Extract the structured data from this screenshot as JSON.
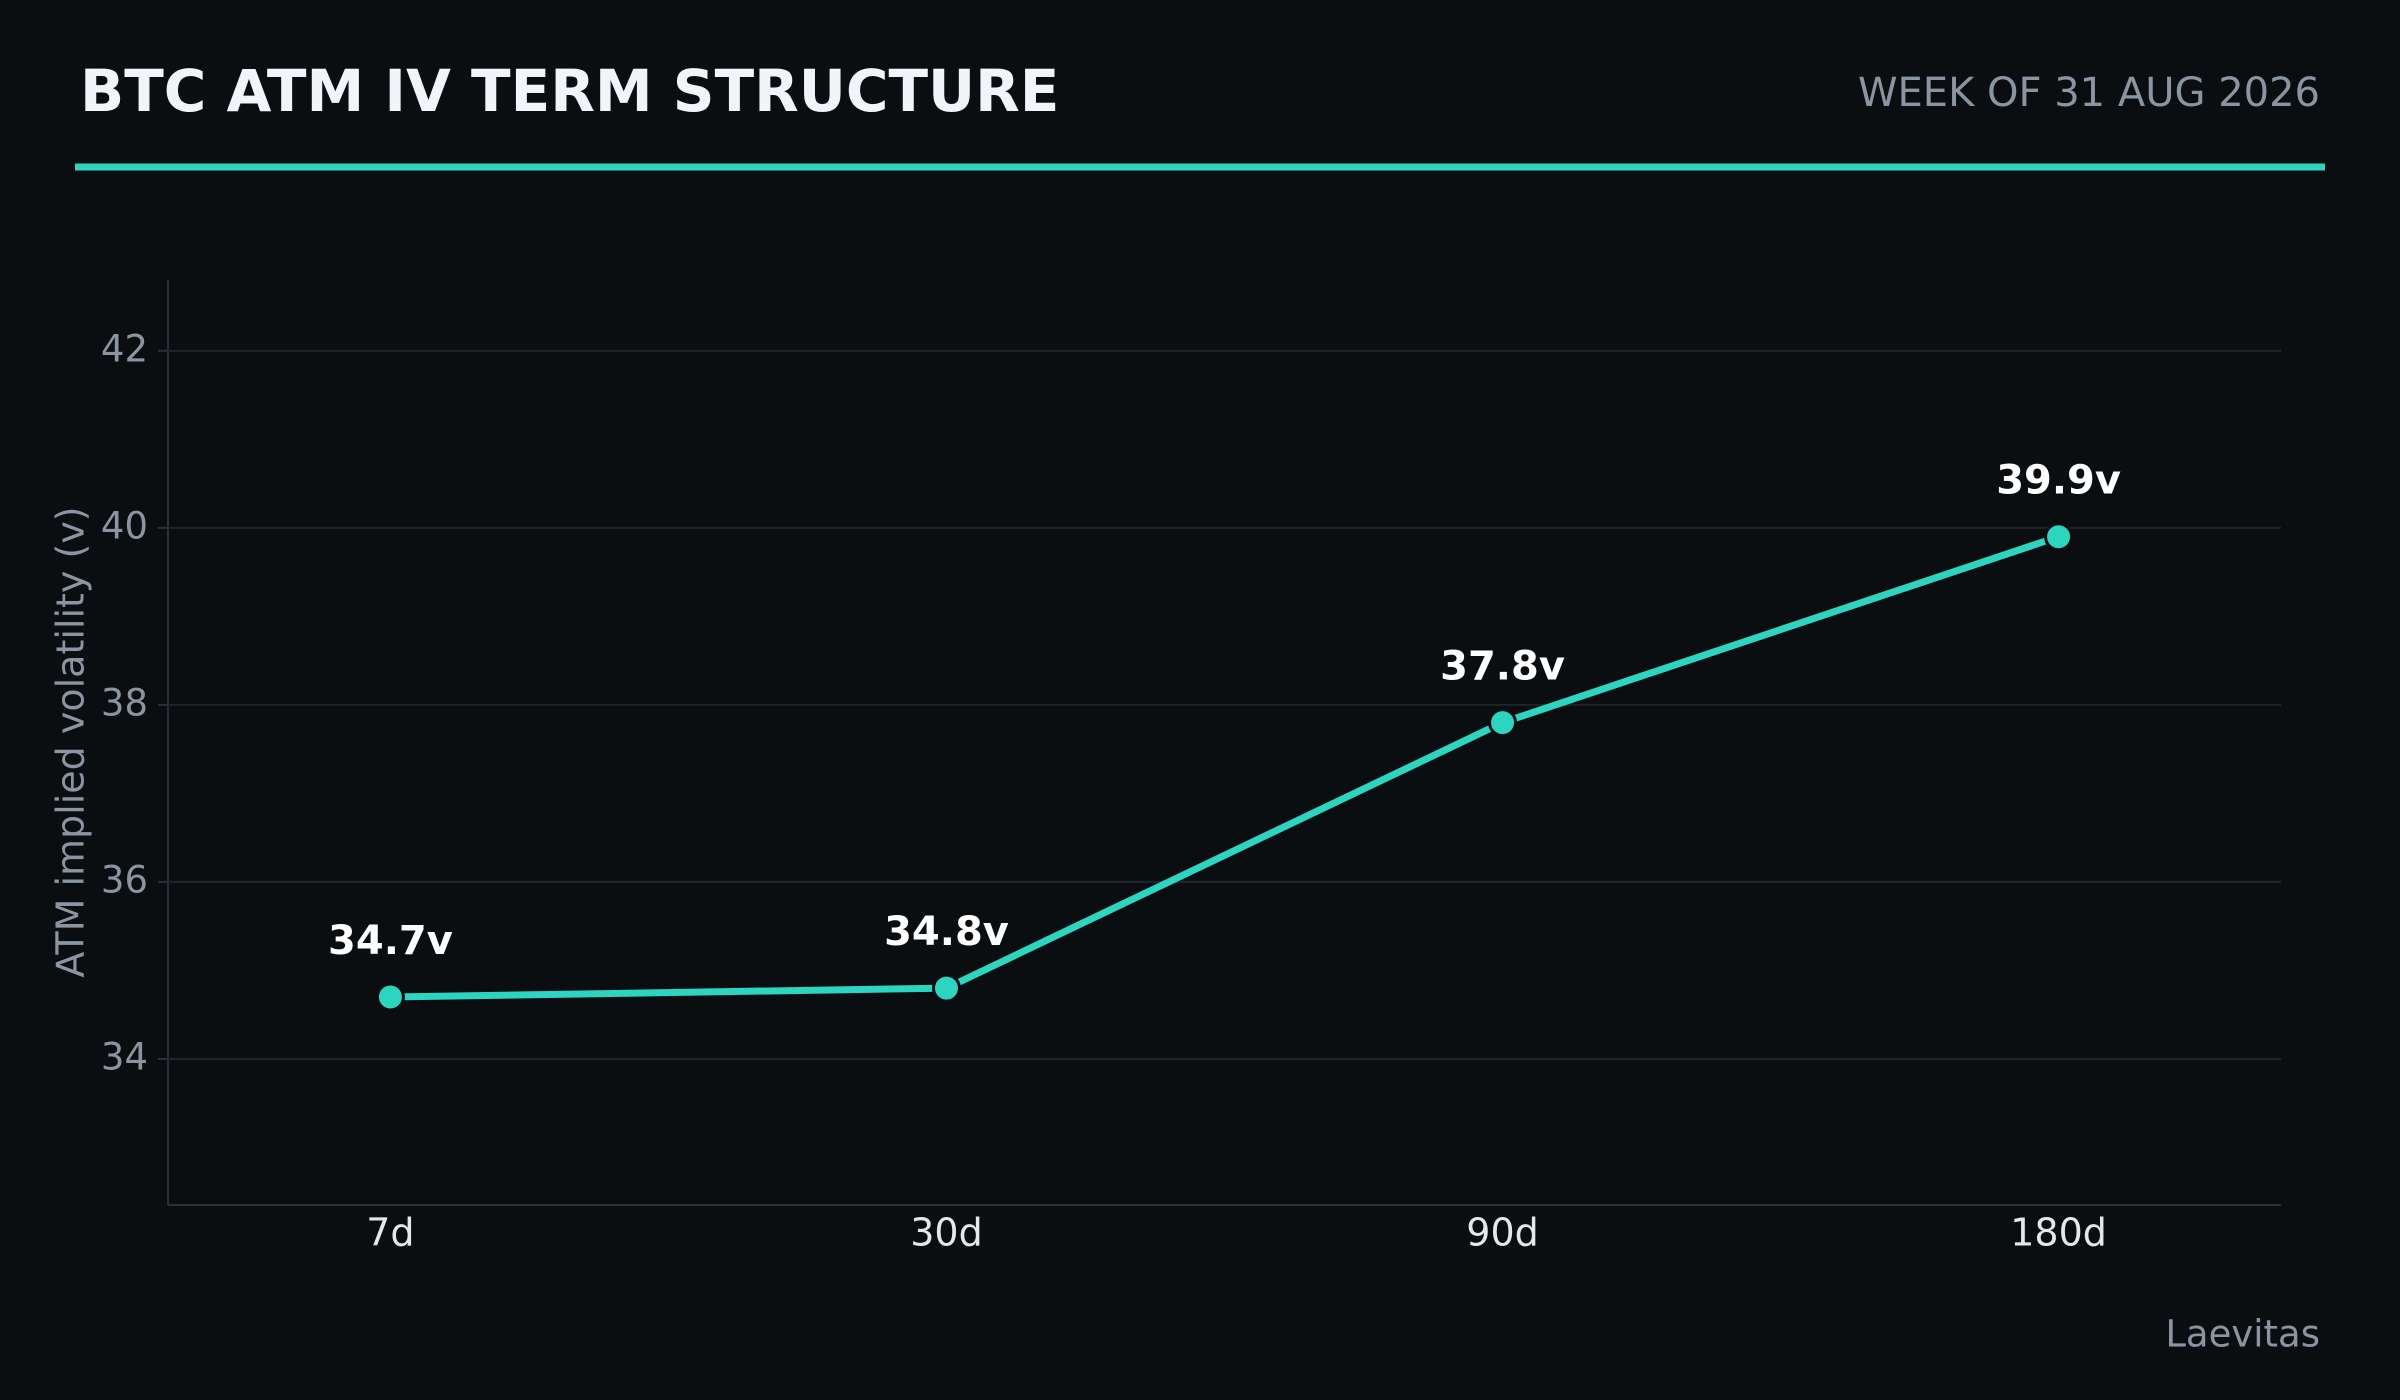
{
  "chart_data": {
    "type": "line",
    "title": "BTC ATM IV TERM STRUCTURE",
    "subtitle": "WEEK OF 31 AUG 2026",
    "y_label": "ATM implied volatility (v)",
    "source": "Laevitas",
    "categories": [
      "7d",
      "30d",
      "90d",
      "180d"
    ],
    "series": [
      {
        "color": "#2dd4bf",
        "values": [
          34.7,
          34.8,
          37.8,
          39.9
        ],
        "value_labels": [
          "34.7v",
          "34.8v",
          "37.8v",
          "39.9v"
        ]
      }
    ],
    "ylim": [
      32.35,
      42.8
    ],
    "yticks": [
      34,
      36,
      38,
      40,
      42
    ],
    "grid": true
  }
}
